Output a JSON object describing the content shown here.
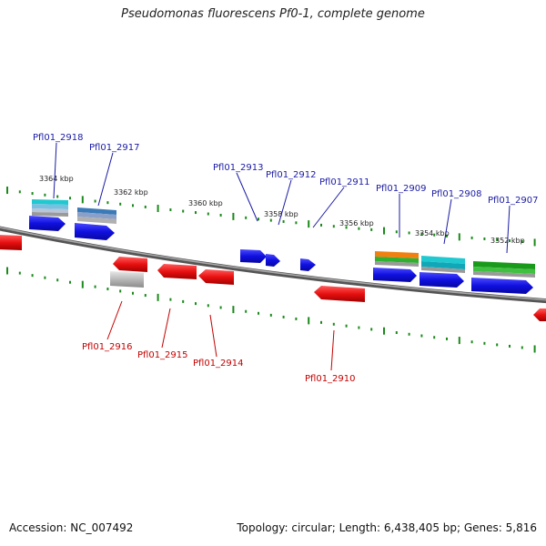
{
  "title": "Pseudomonas fluorescens Pf0-1, complete genome",
  "footer": {
    "accession": "Accession: NC_007492",
    "stats": "Topology: circular; Length: 6,438,405 bp; Genes: 5,816"
  },
  "kbp_labels": [
    "3364 kbp",
    "3362 kbp",
    "3360 kbp",
    "3358 kbp",
    "3356 kbp",
    "3354 kbp",
    "3352 kbp"
  ],
  "top_genes": [
    "Pfl01_2918",
    "Pfl01_2917",
    "Pfl01_2913",
    "Pfl01_2912",
    "Pfl01_2911",
    "Pfl01_2909",
    "Pfl01_2908",
    "Pfl01_2907"
  ],
  "bottom_genes": [
    "Pfl01_2916",
    "Pfl01_2915",
    "Pfl01_2914",
    "Pfl01_2910"
  ],
  "colors": {
    "forward_strand": "#1010e0",
    "reverse_strand": "#e81010",
    "backbone": "#777777",
    "ticks": "#1a8a1a",
    "top_label": "#1a1aa6",
    "bottom_label": "#c40000"
  }
}
